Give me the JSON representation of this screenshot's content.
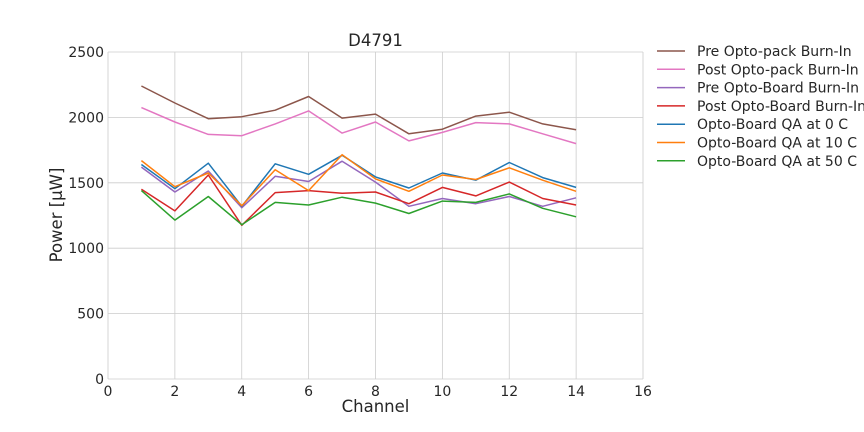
{
  "chart_data": {
    "type": "line",
    "title": "D4791",
    "xlabel": "Channel",
    "ylabel": "Power [μW]",
    "xlim": [
      0,
      16
    ],
    "ylim": [
      0,
      2500
    ],
    "xticks": [
      0,
      2,
      4,
      6,
      8,
      10,
      12,
      14,
      16
    ],
    "yticks": [
      0,
      500,
      1000,
      1500,
      2000,
      2500
    ],
    "grid": true,
    "legend_position": "outside-right",
    "x": [
      1,
      2,
      3,
      4,
      5,
      6,
      7,
      8,
      9,
      10,
      11,
      12,
      13,
      14
    ],
    "series": [
      {
        "name": "Pre Opto-pack Burn-In",
        "color": "#8c564b",
        "values": [
          2240,
          2110,
          1990,
          2005,
          2055,
          2160,
          1995,
          2025,
          1875,
          1910,
          2010,
          2040,
          1950,
          1905
        ]
      },
      {
        "name": "Post Opto-pack Burn-In",
        "color": "#e377c2",
        "values": [
          2075,
          1965,
          1870,
          1860,
          1950,
          2050,
          1880,
          1965,
          1820,
          1885,
          1960,
          1950,
          1875,
          1800
        ]
      },
      {
        "name": "Pre Opto-Board Burn-In",
        "color": "#9467bd",
        "values": [
          1620,
          1430,
          1590,
          1310,
          1550,
          1510,
          1665,
          1505,
          1320,
          1380,
          1340,
          1395,
          1320,
          1385
        ]
      },
      {
        "name": "Post Opto-Board Burn-In",
        "color": "#d62728",
        "values": [
          1450,
          1285,
          1560,
          1175,
          1425,
          1440,
          1420,
          1430,
          1340,
          1465,
          1400,
          1505,
          1380,
          1330
        ]
      },
      {
        "name": "Opto-Board QA at 0 C",
        "color": "#1f77b4",
        "values": [
          1640,
          1455,
          1650,
          1320,
          1645,
          1565,
          1710,
          1545,
          1460,
          1575,
          1520,
          1655,
          1540,
          1465
        ]
      },
      {
        "name": "Opto-Board QA at 10 C",
        "color": "#ff7f0e",
        "values": [
          1670,
          1470,
          1575,
          1325,
          1600,
          1440,
          1715,
          1530,
          1435,
          1560,
          1525,
          1615,
          1520,
          1435
        ]
      },
      {
        "name": "Opto-Board QA at 50 C",
        "color": "#2ca02c",
        "values": [
          1440,
          1215,
          1395,
          1180,
          1350,
          1330,
          1390,
          1345,
          1265,
          1360,
          1350,
          1415,
          1305,
          1240
        ]
      }
    ]
  }
}
